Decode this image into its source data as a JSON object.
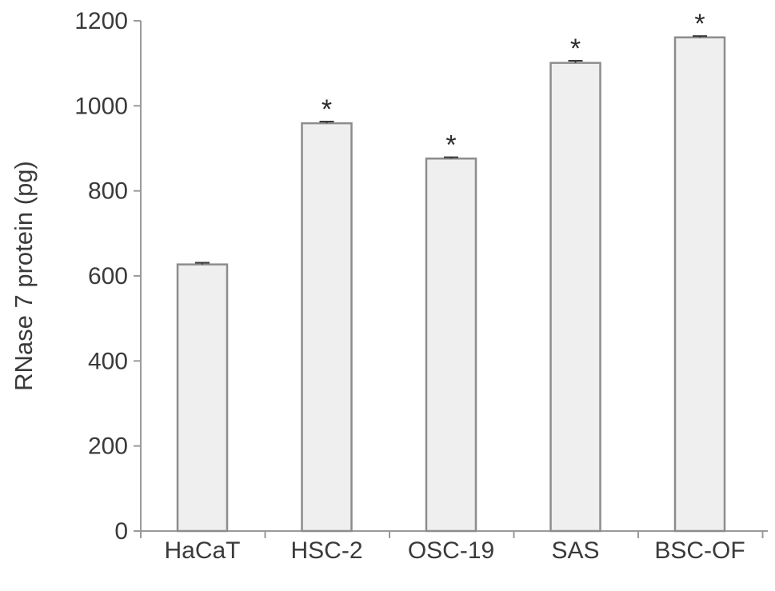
{
  "chart_data": {
    "type": "bar",
    "ylabel": "RNase 7 protein (pg)",
    "xlabel": "",
    "ylim": [
      0,
      1200
    ],
    "yticks": [
      0,
      200,
      400,
      600,
      800,
      1000,
      1200
    ],
    "categories": [
      "HaCaT",
      "HSC-2",
      "OSC-19",
      "SAS",
      "BSC-OF"
    ],
    "values": [
      627,
      959,
      876,
      1101,
      1161
    ],
    "errors": [
      4,
      4,
      3,
      5,
      3
    ],
    "significance": [
      "",
      "*",
      "*",
      "*",
      "*"
    ],
    "grid": false,
    "colors": {
      "bar_fill": "#efefef",
      "bar_stroke": "#8c8c8c",
      "axis": "#9a9a9a",
      "error_bar": "#3a3a3a"
    }
  }
}
